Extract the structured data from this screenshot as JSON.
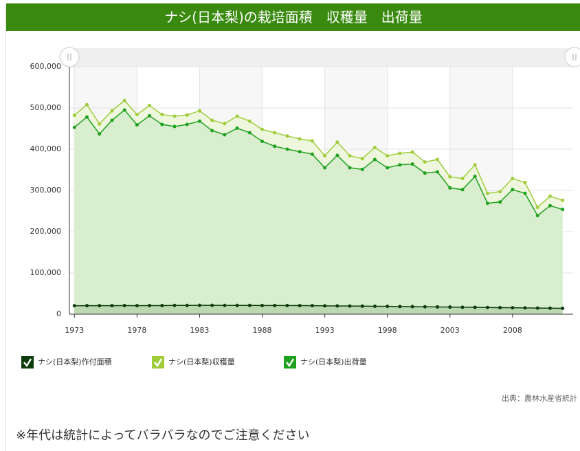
{
  "header": {
    "title": "ナシ(日本梨)の栽培面積　収穫量　出荷量"
  },
  "chart_data": {
    "type": "area",
    "x": [
      1973,
      1974,
      1975,
      1976,
      1977,
      1978,
      1979,
      1980,
      1981,
      1982,
      1983,
      1984,
      1985,
      1986,
      1987,
      1988,
      1989,
      1990,
      1991,
      1992,
      1993,
      1994,
      1995,
      1996,
      1997,
      1998,
      1999,
      2000,
      2001,
      2002,
      2003,
      2004,
      2005,
      2006,
      2007,
      2008,
      2009,
      2010,
      2011,
      2012
    ],
    "series": [
      {
        "name": "ナシ(日本梨)収穫量",
        "color": "#9fcd3a",
        "fill": "#eef7de",
        "values": [
          482000,
          508000,
          461000,
          493000,
          518000,
          484000,
          506000,
          484000,
          480000,
          483000,
          493000,
          470000,
          462000,
          480000,
          468000,
          448000,
          440000,
          432000,
          425000,
          420000,
          384000,
          417000,
          384000,
          377000,
          404000,
          384000,
          390000,
          393000,
          369000,
          375000,
          333000,
          329000,
          362000,
          293000,
          297000,
          329000,
          319000,
          259000,
          286000,
          276000
        ]
      },
      {
        "name": "ナシ(日本梨)出荷量",
        "color": "#1ea11e",
        "fill": "#d9edcf",
        "values": [
          453000,
          478000,
          437000,
          470000,
          495000,
          459000,
          481000,
          460000,
          455000,
          460000,
          468000,
          445000,
          435000,
          451000,
          440000,
          419000,
          407000,
          400000,
          394000,
          388000,
          355000,
          385000,
          355000,
          351000,
          375000,
          355000,
          362000,
          364000,
          342000,
          345000,
          306000,
          302000,
          334000,
          269000,
          272000,
          302000,
          293000,
          239000,
          263000,
          254000
        ]
      },
      {
        "name": "ナシ(日本梨)作付面積",
        "color": "#0d3d0d",
        "fill": "#bcd8b0",
        "values": [
          20500,
          20700,
          20600,
          20700,
          20800,
          20700,
          20800,
          20900,
          21200,
          21300,
          21400,
          21400,
          21300,
          21300,
          21200,
          21100,
          21000,
          21000,
          20900,
          20600,
          20200,
          20000,
          19800,
          19500,
          19200,
          18900,
          18600,
          18300,
          17900,
          17600,
          17200,
          16900,
          16600,
          16300,
          15900,
          15600,
          15200,
          14800,
          14500,
          14200
        ]
      }
    ],
    "xlim": [
      1972.6,
      2012.4
    ],
    "xticks": [
      1973,
      1978,
      1983,
      1988,
      1993,
      1998,
      2003,
      2008
    ],
    "ylim": [
      0,
      600000
    ],
    "yticks": [
      0,
      {
        "value": 100000,
        "label": "100,000"
      },
      {
        "value": 200000,
        "label": "200,000"
      },
      {
        "value": 300000,
        "label": "300,000"
      },
      {
        "value": 400000,
        "label": "400,000"
      },
      {
        "value": 500000,
        "label": "500,000"
      },
      {
        "value": 600000,
        "label": "600,000"
      }
    ],
    "grid": true,
    "legend": "bottom-left",
    "legend_order": [
      2,
      0,
      1
    ]
  },
  "source": "出典：農林水産省統計",
  "note": "※年代は統計によってバラバラなのでご注意ください"
}
